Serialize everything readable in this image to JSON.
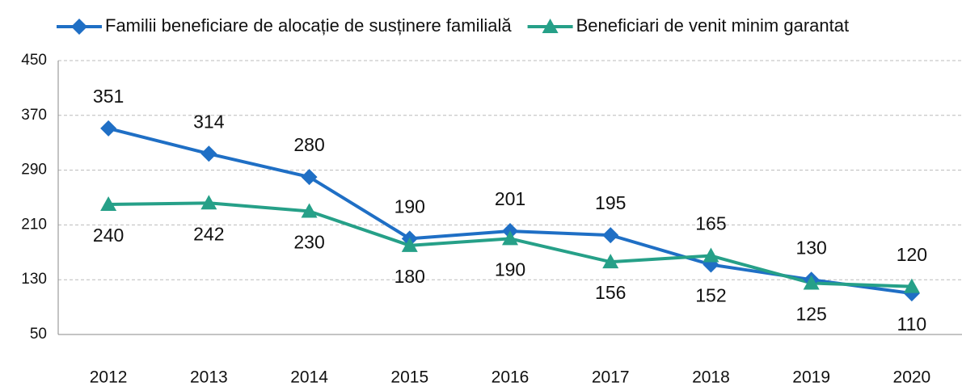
{
  "chart_data": {
    "type": "line",
    "categories": [
      "2012",
      "2013",
      "2014",
      "2015",
      "2016",
      "2017",
      "2018",
      "2019",
      "2020"
    ],
    "series": [
      {
        "name": "Familii beneficiare de alocație de susținere familială",
        "color": "#1f6fc5",
        "marker": "diamond",
        "values": [
          351,
          314,
          280,
          190,
          201,
          195,
          152,
          130,
          110
        ]
      },
      {
        "name": "Beneficiari de venit minim garantat",
        "color": "#26a088",
        "marker": "triangle",
        "values": [
          240,
          242,
          230,
          180,
          190,
          156,
          165,
          125,
          120
        ]
      }
    ],
    "ylim": [
      50,
      450
    ],
    "yticks": [
      50,
      130,
      210,
      290,
      370,
      450
    ],
    "grid": true,
    "legend": "top"
  }
}
